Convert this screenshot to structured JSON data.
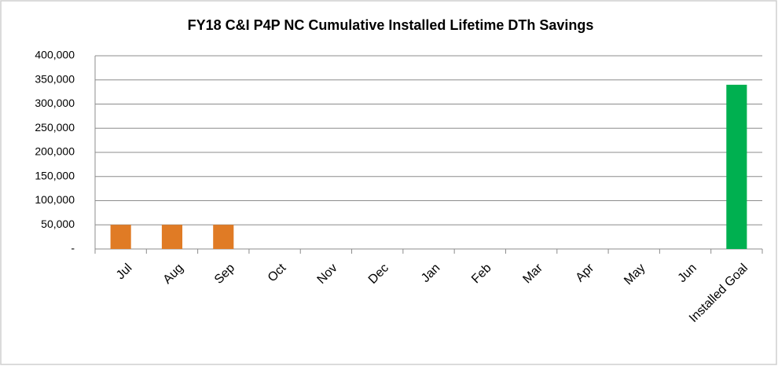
{
  "chart_data": {
    "type": "bar",
    "title": "FY18 C&I P4P NC Cumulative Installed Lifetime DTh Savings",
    "categories": [
      "Jul",
      "Aug",
      "Sep",
      "Oct",
      "Nov",
      "Dec",
      "Jan",
      "Feb",
      "Mar",
      "Apr",
      "May",
      "Jun",
      "Installed Goal"
    ],
    "values": [
      50000,
      50000,
      50000,
      null,
      null,
      null,
      null,
      null,
      null,
      null,
      null,
      null,
      340000
    ],
    "colors": [
      "#e07b25",
      "#e07b25",
      "#e07b25",
      null,
      null,
      null,
      null,
      null,
      null,
      null,
      null,
      null,
      "#00b050"
    ],
    "ylim": [
      0,
      400000
    ],
    "yticks": [
      {
        "value": 0,
        "label": "-"
      },
      {
        "value": 50000,
        "label": "50,000"
      },
      {
        "value": 100000,
        "label": "100,000"
      },
      {
        "value": 150000,
        "label": "150,000"
      },
      {
        "value": 200000,
        "label": "200,000"
      },
      {
        "value": 250000,
        "label": "250,000"
      },
      {
        "value": 300000,
        "label": "300,000"
      },
      {
        "value": 350000,
        "label": "350,000"
      },
      {
        "value": 400000,
        "label": "400,000"
      }
    ],
    "grid": true
  }
}
